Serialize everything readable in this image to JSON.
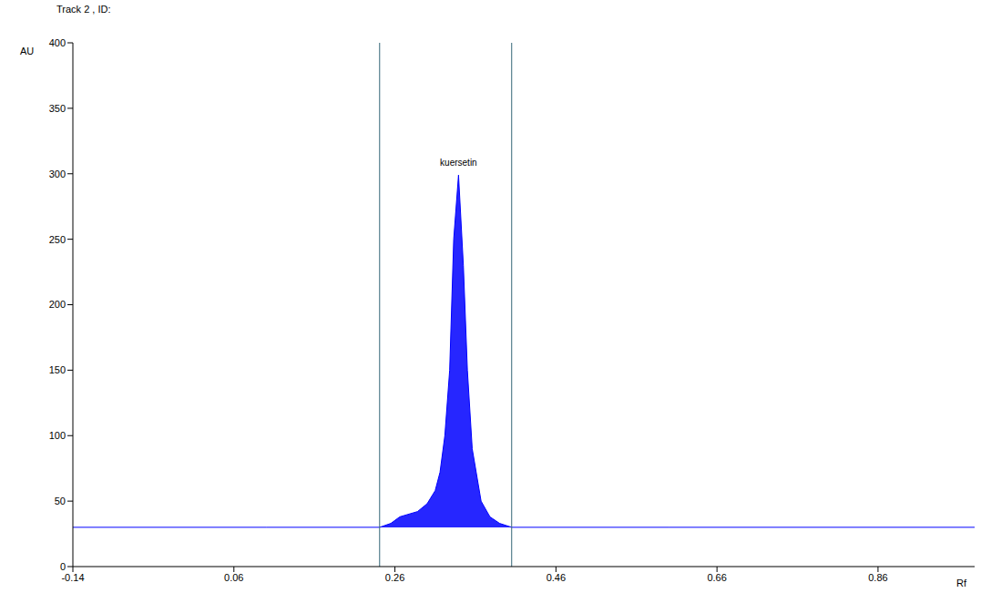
{
  "chart_data": {
    "type": "area",
    "title": "Track 2 , ID:",
    "x_label": "Rf",
    "y_label": "AU",
    "x": [
      -0.14,
      0.1,
      0.241,
      0.255,
      0.266,
      0.288,
      0.3,
      0.31,
      0.316,
      0.322,
      0.328,
      0.333,
      0.339,
      0.345,
      0.35,
      0.356,
      0.367,
      0.378,
      0.39,
      0.405,
      0.6,
      0.98
    ],
    "series": [
      {
        "name": "kuersetin",
        "color": "#0000ff",
        "values": [
          30,
          30,
          30,
          33,
          38,
          42,
          48,
          58,
          72,
          100,
          150,
          250,
          299,
          230,
          150,
          90,
          50,
          38,
          33,
          30,
          30,
          30
        ]
      }
    ],
    "baseline": 30,
    "xlim": [
      -0.14,
      0.98
    ],
    "xticks": [
      -0.14,
      0.06,
      0.26,
      0.46,
      0.66,
      0.86
    ],
    "ylim": [
      0,
      400
    ],
    "yticks": [
      0,
      50,
      100,
      150,
      200,
      250,
      300,
      350,
      400
    ],
    "vertical_lines": [
      0.241,
      0.405
    ],
    "annotations": [
      {
        "text": "kuersetin",
        "x": 0.339,
        "y": 299
      }
    ],
    "grid": false
  }
}
